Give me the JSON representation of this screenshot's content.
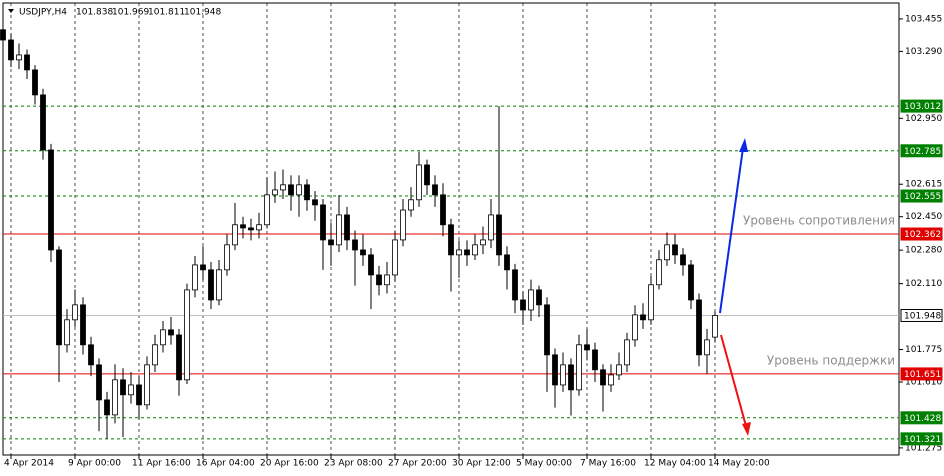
{
  "chart_data": {
    "type": "candlestick",
    "header": {
      "symbol": "USDJPY,H4",
      "values": [
        101.838,
        101.969,
        101.811,
        101.948
      ]
    },
    "open": [
      103.4,
      103.348,
      103.247,
      103.272,
      103.196,
      103.069,
      102.789,
      102.281,
      101.799,
      101.926,
      102.002,
      101.799,
      101.697,
      101.519,
      101.443,
      101.621,
      101.545,
      101.595,
      101.494,
      101.697,
      101.799,
      101.875,
      101.849,
      101.621,
      102.078,
      102.205,
      102.18,
      102.027,
      102.18,
      102.307,
      102.409,
      102.393,
      102.383,
      102.409,
      102.561,
      102.586,
      102.612,
      102.561,
      102.612,
      102.536,
      102.51,
      102.332,
      102.307,
      102.459,
      102.332,
      102.281,
      102.256,
      102.154,
      102.104,
      102.154,
      102.332,
      102.484,
      102.536,
      102.713,
      102.612,
      102.561,
      102.409,
      102.256,
      102.281,
      102.256,
      102.307,
      102.332,
      102.459,
      102.256,
      102.18,
      102.027,
      101.976,
      102.078,
      102.002,
      101.748,
      101.595,
      101.697,
      101.57,
      101.799,
      101.773,
      101.672,
      101.595,
      101.646,
      101.697,
      101.824,
      101.951,
      101.926,
      102.104,
      102.231,
      102.307,
      102.256,
      102.205,
      102.027,
      101.748,
      101.838
    ],
    "high": [
      103.455,
      103.38,
      103.33,
      103.3,
      103.22,
      103.1,
      102.82,
      102.3,
      101.98,
      102.08,
      102.04,
      101.84,
      101.73,
      101.56,
      101.7,
      101.68,
      101.66,
      101.64,
      101.74,
      101.85,
      101.92,
      101.94,
      101.88,
      102.11,
      102.25,
      102.3,
      102.22,
      102.23,
      102.36,
      102.52,
      102.45,
      102.44,
      102.47,
      102.65,
      102.68,
      102.69,
      102.66,
      102.66,
      102.64,
      102.58,
      102.54,
      102.42,
      102.56,
      102.5,
      102.38,
      102.36,
      102.29,
      102.2,
      102.22,
      102.38,
      102.54,
      102.6,
      102.78,
      102.74,
      102.66,
      102.62,
      102.44,
      102.33,
      102.33,
      102.36,
      102.4,
      102.54,
      103.012,
      102.3,
      102.21,
      102.07,
      102.13,
      102.1,
      102.04,
      101.78,
      101.76,
      101.73,
      101.85,
      101.88,
      101.81,
      101.7,
      101.7,
      101.76,
      101.86,
      102.0,
      102.01,
      102.15,
      102.28,
      102.37,
      102.36,
      102.29,
      102.23,
      102.06,
      101.88,
      101.969
    ],
    "low": [
      103.3,
      103.21,
      103.2,
      103.15,
      103.02,
      102.74,
      102.22,
      101.61,
      101.76,
      101.89,
      101.75,
      101.64,
      101.36,
      101.321,
      101.4,
      101.33,
      101.5,
      101.42,
      101.47,
      101.66,
      101.76,
      101.8,
      101.54,
      101.6,
      102.04,
      102.13,
      101.98,
      102.0,
      102.15,
      102.28,
      102.34,
      102.33,
      102.34,
      102.39,
      102.52,
      102.54,
      102.48,
      102.45,
      102.48,
      102.43,
      102.18,
      102.2,
      102.27,
      102.28,
      102.1,
      102.2,
      101.98,
      102.05,
      102.06,
      102.12,
      102.3,
      102.45,
      102.5,
      102.56,
      102.5,
      102.35,
      102.07,
      102.14,
      102.2,
      102.23,
      102.26,
      102.29,
      102.2,
      102.08,
      101.96,
      101.9,
      101.92,
      101.94,
      101.56,
      101.48,
      101.56,
      101.44,
      101.54,
      101.72,
      101.61,
      101.46,
      101.56,
      101.62,
      101.66,
      101.79,
      101.88,
      101.9,
      102.08,
      102.2,
      102.21,
      102.15,
      101.98,
      101.69,
      101.651,
      101.811
    ],
    "close": [
      103.348,
      103.247,
      103.272,
      103.196,
      103.069,
      102.789,
      102.281,
      101.799,
      101.926,
      102.002,
      101.799,
      101.697,
      101.519,
      101.443,
      101.621,
      101.545,
      101.595,
      101.494,
      101.697,
      101.799,
      101.875,
      101.849,
      101.621,
      102.078,
      102.205,
      102.18,
      102.027,
      102.18,
      102.307,
      102.409,
      102.393,
      102.383,
      102.409,
      102.561,
      102.586,
      102.612,
      102.561,
      102.612,
      102.536,
      102.51,
      102.332,
      102.307,
      102.459,
      102.332,
      102.281,
      102.256,
      102.154,
      102.104,
      102.154,
      102.332,
      102.484,
      102.536,
      102.713,
      102.612,
      102.561,
      102.409,
      102.256,
      102.281,
      102.256,
      102.307,
      102.332,
      102.459,
      102.256,
      102.18,
      102.027,
      101.976,
      102.078,
      102.002,
      101.748,
      101.595,
      101.697,
      101.57,
      101.799,
      101.773,
      101.672,
      101.595,
      101.646,
      101.697,
      101.824,
      101.951,
      101.926,
      102.104,
      102.231,
      102.307,
      102.256,
      102.205,
      102.027,
      101.748,
      101.824,
      101.948
    ],
    "ylim": [
      101.239,
      103.536
    ],
    "yticks": [
      103.455,
      {
        "value": 103.29,
        "label": "103.290"
      },
      {
        "value": 102.95,
        "label": "102.950"
      },
      102.615,
      {
        "value": 102.45,
        "label": "102.450"
      },
      {
        "value": 102.28,
        "label": "102.280"
      },
      {
        "value": 102.11,
        "label": "102.110"
      },
      101.775,
      {
        "value": 101.61,
        "label": "101.610"
      },
      101.275
    ],
    "xticks": [
      {
        "value": 1,
        "label": "4 Apr 2014"
      },
      {
        "value": 9,
        "label": "9 Apr 00:00"
      },
      {
        "value": 17,
        "label": "11 Apr 16:00"
      },
      {
        "value": 25,
        "label": "16 Apr 04:00"
      },
      {
        "value": 33,
        "label": "20 Apr 16:00"
      },
      {
        "value": 41,
        "label": "23 Apr 08:00"
      },
      {
        "value": 49,
        "label": "27 Apr 20:00"
      },
      {
        "value": 57,
        "label": "30 Apr 12:00"
      },
      {
        "value": 65,
        "label": "5 May 00:00"
      },
      {
        "value": 73,
        "label": "7 May 16:00"
      },
      {
        "value": 81,
        "label": "12 May 04:00"
      },
      {
        "value": 89,
        "label": "14 May 20:00"
      }
    ],
    "levels": [
      {
        "value": 103.012,
        "color": "#008000",
        "style": "dashed"
      },
      {
        "value": 102.785,
        "color": "#008000",
        "style": "dashed"
      },
      {
        "value": 102.555,
        "color": "#008000",
        "style": "dashed"
      },
      {
        "value": 102.362,
        "color": "#e00000",
        "style": "solid"
      },
      {
        "value": 101.948,
        "color": "#c0c0c0",
        "style": "current"
      },
      {
        "value": 101.651,
        "color": "#e00000",
        "style": "solid"
      },
      {
        "value": 101.428,
        "color": "#008000",
        "style": "dashed"
      },
      {
        "value": 101.321,
        "color": "#008000",
        "style": "dashed"
      }
    ],
    "annotations": [
      {
        "text": "Уровень сопротивления",
        "value": 102.362
      },
      {
        "text": "Уровень поддержки",
        "value": 101.651
      }
    ]
  }
}
